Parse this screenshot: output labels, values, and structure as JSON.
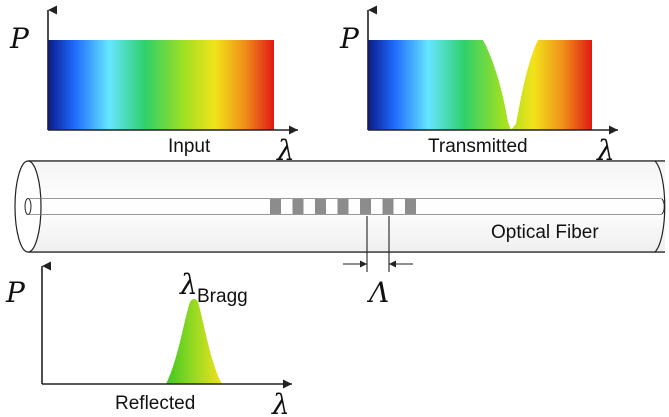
{
  "panels": {
    "input": {
      "caption": "Input",
      "y_label": "P",
      "x_label": "λ"
    },
    "transmitted": {
      "caption": "Transmitted",
      "y_label": "P",
      "x_label": "λ"
    },
    "reflected": {
      "caption": "Reflected",
      "y_label": "P",
      "x_label": "λ",
      "peak_label_main": "λ",
      "peak_label_sub": "Bragg"
    }
  },
  "fiber": {
    "label": "Optical Fiber",
    "grating_segments": 7,
    "period_symbol": "Λ"
  },
  "colors": {
    "spectrum": [
      "#0a1a8a",
      "#1f6cff",
      "#66e6ff",
      "#2fd06a",
      "#9ee022",
      "#f3e21a",
      "#f09018",
      "#e01a14"
    ],
    "reflected_peak": [
      "#3fc81f",
      "#9ee022",
      "#f3e21a"
    ],
    "grating": "#8c8c8c",
    "outline": "#222222"
  }
}
